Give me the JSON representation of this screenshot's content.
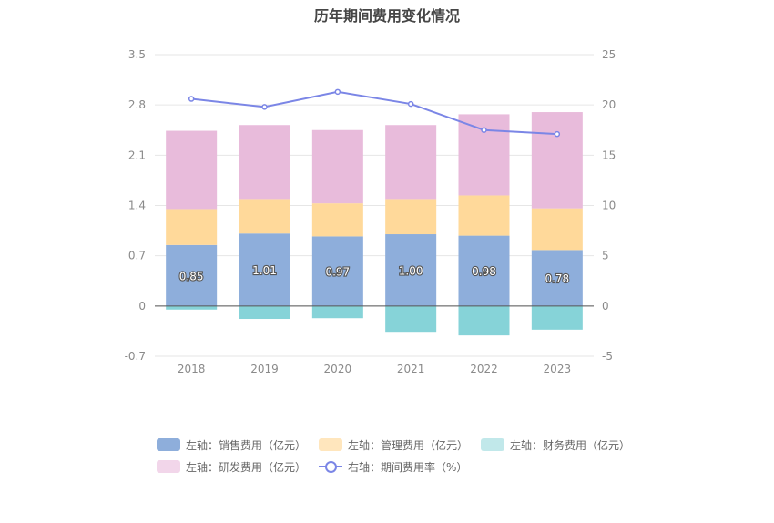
{
  "chart_data": {
    "type": "bar",
    "title": "历年期间费用变化情况",
    "categories": [
      "2018",
      "2019",
      "2020",
      "2021",
      "2022",
      "2023"
    ],
    "stacked": true,
    "left_axis": {
      "min": -0.7,
      "max": 3.5,
      "ticks": [
        "3.5",
        "2.8",
        "2.1",
        "1.4",
        "0.7",
        "0",
        "-0.7"
      ]
    },
    "right_axis": {
      "min": -5,
      "max": 25,
      "ticks": [
        "25",
        "20",
        "15",
        "10",
        "5",
        "0",
        "-5"
      ]
    },
    "series": [
      {
        "name": "左轴：销售费用（亿元）",
        "axis": "left",
        "color": "#8eaedb",
        "values": [
          0.85,
          1.01,
          0.97,
          1.0,
          0.98,
          0.78
        ],
        "labels": [
          "0.85",
          "1.01",
          "0.97",
          "1.00",
          "0.98",
          "0.78"
        ]
      },
      {
        "name": "左轴：管理费用（亿元）",
        "axis": "left",
        "color": "#ffd99a",
        "values": [
          0.5,
          0.48,
          0.46,
          0.49,
          0.56,
          0.58
        ]
      },
      {
        "name": "左轴：财务费用（亿元）",
        "axis": "left",
        "color": "#86d3d8",
        "values": [
          -0.05,
          -0.18,
          -0.17,
          -0.36,
          -0.41,
          -0.33
        ]
      },
      {
        "name": "左轴：研发费用（亿元）",
        "axis": "left",
        "color": "#e8bbdb",
        "values": [
          1.09,
          1.03,
          1.02,
          1.03,
          1.13,
          1.34
        ]
      },
      {
        "name": "右轴：期间费用率（%）",
        "axis": "right",
        "type": "line",
        "color": "#7b86e6",
        "values": [
          20.6,
          19.8,
          21.3,
          20.1,
          17.5,
          17.1
        ]
      }
    ]
  }
}
